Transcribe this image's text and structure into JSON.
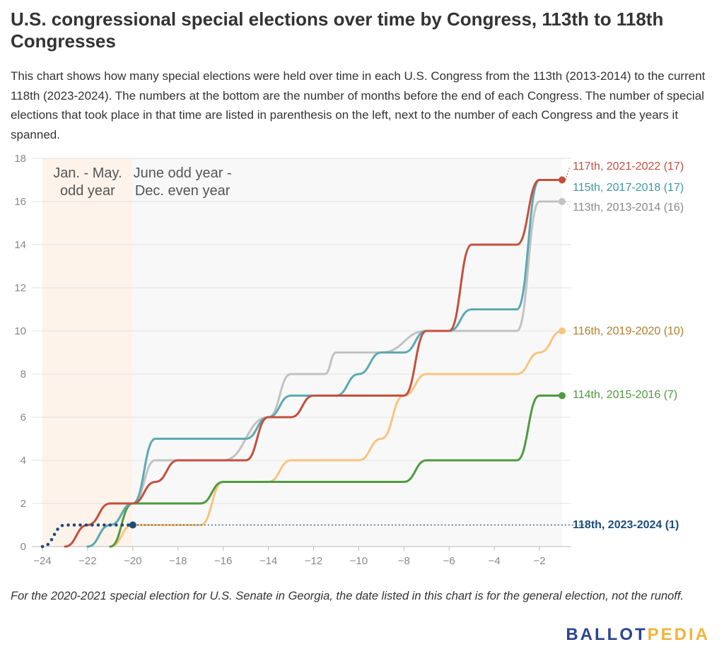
{
  "title": "U.S. congressional special elections over time by Congress, 113th to 118th Congresses",
  "subtitle": "This chart shows how many special elections were held over time in each U.S. Congress from the 113th (2013-2014) to the current 118th (2023-2024). The numbers at the bottom are the number of months before the end of each Congress. The number of special elections that took place in that time are listed in parenthesis on the left, next to the number of each Congress and the years it spanned.",
  "note": "For the 2020-2021 special election for U.S. Senate in Georgia, the date listed in this chart is for the general election, not the runoff.",
  "logo": {
    "part1": "BALLOT",
    "part2": "PEDIA"
  },
  "chart_data": {
    "type": "line",
    "title": "",
    "xlabel": "",
    "ylabel": "",
    "xlim": [
      -24,
      -1
    ],
    "ylim": [
      0,
      18
    ],
    "x_ticks": [
      -24,
      -22,
      -20,
      -18,
      -16,
      -14,
      -12,
      -10,
      -8,
      -6,
      -4,
      -2
    ],
    "y_ticks": [
      0,
      2,
      4,
      6,
      8,
      10,
      12,
      14,
      16,
      18
    ],
    "grid": true,
    "legend": "labels at right end of lines",
    "bands": [
      {
        "label_lines": [
          "Jan. - May.",
          "odd year"
        ],
        "x_range": [
          -24,
          -20
        ],
        "color": "#fdf3ea"
      },
      {
        "label_lines": [
          "June odd year -",
          "Dec. even year"
        ],
        "x_range": [
          -20,
          -1
        ],
        "color": "#f8f8f8"
      }
    ],
    "series": [
      {
        "name": "113th, 2013-2014 (16)",
        "color": "#c2c2c2",
        "points": [
          [
            -22,
            0
          ],
          [
            -21,
            1
          ],
          [
            -20,
            2
          ],
          [
            -19,
            4
          ],
          [
            -16,
            4
          ],
          [
            -14,
            6
          ],
          [
            -13,
            8
          ],
          [
            -11.5,
            8
          ],
          [
            -11,
            9
          ],
          [
            -9.5,
            9
          ],
          [
            -9,
            9
          ],
          [
            -7,
            10
          ],
          [
            -3,
            10
          ],
          [
            -2,
            16
          ],
          [
            -1,
            16
          ]
        ]
      },
      {
        "name": "114th, 2015-2016 (7)",
        "color": "#4e9a3f",
        "points": [
          [
            -21,
            0
          ],
          [
            -20,
            2
          ],
          [
            -17,
            2
          ],
          [
            -16,
            3
          ],
          [
            -8,
            3
          ],
          [
            -7,
            4
          ],
          [
            -3,
            4
          ],
          [
            -2,
            7
          ],
          [
            -1,
            7
          ]
        ]
      },
      {
        "name": "115th, 2017-2018 (17)",
        "color": "#5baab3",
        "points": [
          [
            -22,
            0
          ],
          [
            -21,
            1
          ],
          [
            -20,
            2
          ],
          [
            -19,
            5
          ],
          [
            -15,
            5
          ],
          [
            -14,
            6
          ],
          [
            -13,
            7
          ],
          [
            -11,
            7
          ],
          [
            -10,
            8
          ],
          [
            -9,
            9
          ],
          [
            -8,
            9
          ],
          [
            -7,
            10
          ],
          [
            -6,
            10
          ],
          [
            -5,
            11
          ],
          [
            -3,
            11
          ],
          [
            -2,
            17
          ],
          [
            -1,
            17
          ]
        ]
      },
      {
        "name": "116th, 2019-2020 (10)",
        "color": "#f8c47e",
        "points": [
          [
            -21,
            0
          ],
          [
            -20,
            1
          ],
          [
            -17,
            1
          ],
          [
            -16,
            3
          ],
          [
            -14,
            3
          ],
          [
            -13,
            4
          ],
          [
            -10,
            4
          ],
          [
            -9,
            5
          ],
          [
            -8,
            7
          ],
          [
            -7,
            8
          ],
          [
            -3,
            8
          ],
          [
            -2,
            9
          ],
          [
            -1,
            10
          ]
        ]
      },
      {
        "name": "117th, 2021-2022 (17)",
        "color": "#c44f3d",
        "points": [
          [
            -23,
            0
          ],
          [
            -22,
            1
          ],
          [
            -21,
            2
          ],
          [
            -20,
            2
          ],
          [
            -19,
            3
          ],
          [
            -18,
            4
          ],
          [
            -15,
            4
          ],
          [
            -14,
            6
          ],
          [
            -13,
            6
          ],
          [
            -12,
            7
          ],
          [
            -8,
            7
          ],
          [
            -7,
            10
          ],
          [
            -6,
            10
          ],
          [
            -5,
            14
          ],
          [
            -3,
            14
          ],
          [
            -2,
            17
          ],
          [
            -1,
            17
          ]
        ]
      },
      {
        "name": "118th, 2023-2024 (1)",
        "color": "#1a4d7e",
        "dotted": true,
        "points": [
          [
            -24,
            0
          ],
          [
            -23,
            1
          ],
          [
            -20,
            1
          ]
        ]
      }
    ]
  }
}
